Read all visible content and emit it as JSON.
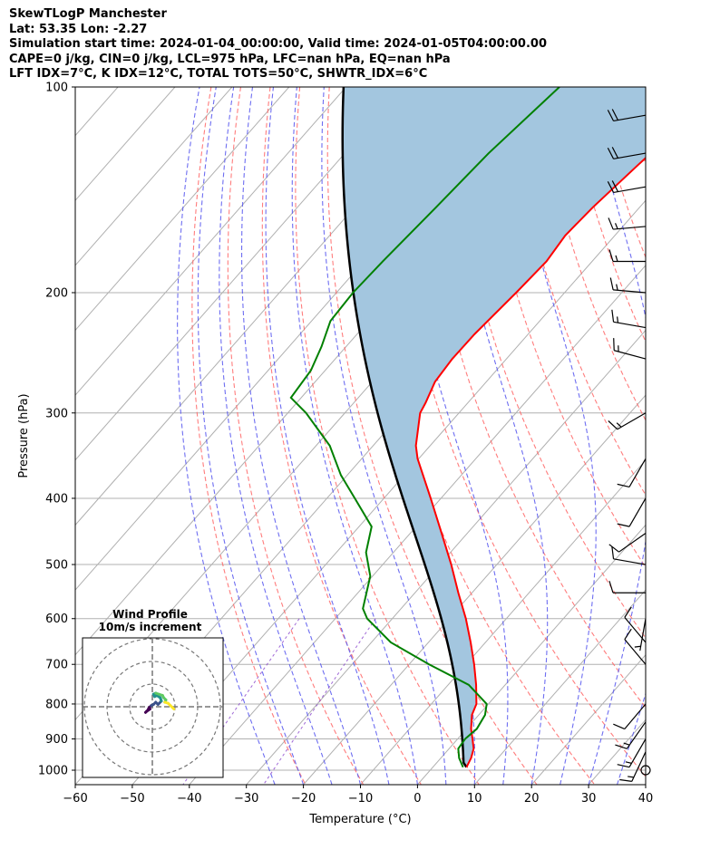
{
  "header": {
    "title": "SkewTLogP Manchester",
    "location": "Lat: 53.35   Lon: -2.27",
    "times": "Simulation start time: 2024-01-04_00:00:00, Valid time: 2024-01-05T04:00:00.00",
    "indices1": "CAPE=0 j/kg, CIN=0 j/kg, LCL=975 hPa, LFC=nan hPa, EQ=nan hPa",
    "indices2": "LFT IDX=7°C, K IDX=12°C, TOTAL TOTS=50°C, SHWTR_IDX=6°C"
  },
  "chart_data": {
    "type": "skewt",
    "xlabel": "Temperature (°C)",
    "ylabel": "Pressure (hPa)",
    "xlim": [
      -60,
      40
    ],
    "ylim": [
      1050,
      100
    ],
    "xticks": [
      -60,
      -50,
      -40,
      -30,
      -20,
      -10,
      0,
      10,
      20,
      30,
      40
    ],
    "yticks": [
      100,
      200,
      300,
      400,
      500,
      600,
      700,
      800,
      900,
      1000
    ],
    "colors": {
      "temperature": "#ff0000",
      "dewpoint": "#008000",
      "parcel": "#000000",
      "shade": "#a3c6df",
      "isotherm": "#b0b0b0",
      "dry_adiabat": "#ff6666",
      "moist_adiabat": "#5555ee",
      "mixing_ratio": "#8844cc"
    },
    "temperature": {
      "p": [
        990,
        960,
        930,
        900,
        870,
        830,
        800,
        750,
        700,
        650,
        600,
        550,
        500,
        450,
        400,
        350,
        335,
        300,
        290,
        270,
        250,
        230,
        200,
        180,
        165,
        150,
        130,
        115,
        100
      ],
      "t": [
        5.9,
        5.3,
        4.3,
        2.6,
        0.8,
        -1.2,
        -2.1,
        -5.1,
        -8.6,
        -12.6,
        -17.1,
        -22.4,
        -28.0,
        -34.5,
        -41.8,
        -50.2,
        -52.5,
        -56.8,
        -57.4,
        -59.0,
        -59.5,
        -59.4,
        -58.5,
        -58.0,
        -58.7,
        -58.2,
        -56.8,
        -55.4,
        -54.0
      ]
    },
    "dewpoint": {
      "p": [
        990,
        960,
        930,
        900,
        870,
        830,
        800,
        750,
        700,
        650,
        600,
        580,
        520,
        480,
        440,
        400,
        370,
        335,
        300,
        285,
        260,
        240,
        220,
        200,
        180,
        150,
        125,
        100
      ],
      "td": [
        5.3,
        3.2,
        1.6,
        1.3,
        1.8,
        1.1,
        -0.3,
        -6.4,
        -16.5,
        -26.6,
        -34.4,
        -36.7,
        -40.4,
        -44.8,
        -47.8,
        -55.1,
        -61.1,
        -67.6,
        -76.8,
        -81.8,
        -82.5,
        -84.3,
        -86.7,
        -87.1,
        -86.7,
        -85.7,
        -84.8,
        -82.6
      ]
    },
    "parcel": {
      "start_t": 5.9,
      "start_p": 990,
      "lcl_p": 975
    },
    "wind_barbs": [
      {
        "p": 1000,
        "speed_kt": 0,
        "dir": 0
      },
      {
        "p": 940,
        "speed_kt": 15,
        "dir": 205
      },
      {
        "p": 900,
        "speed_kt": 15,
        "dir": 210
      },
      {
        "p": 850,
        "speed_kt": 15,
        "dir": 215
      },
      {
        "p": 800,
        "speed_kt": 10,
        "dir": 220
      },
      {
        "p": 700,
        "speed_kt": 10,
        "dir": 320
      },
      {
        "p": 650,
        "speed_kt": 10,
        "dir": 320
      },
      {
        "p": 600,
        "speed_kt": 5,
        "dir": 190
      },
      {
        "p": 550,
        "speed_kt": 10,
        "dir": 270
      },
      {
        "p": 500,
        "speed_kt": 10,
        "dir": 280
      },
      {
        "p": 450,
        "speed_kt": 10,
        "dir": 235
      },
      {
        "p": 400,
        "speed_kt": 10,
        "dir": 210
      },
      {
        "p": 350,
        "speed_kt": 10,
        "dir": 210
      },
      {
        "p": 300,
        "speed_kt": 15,
        "dir": 240
      },
      {
        "p": 250,
        "speed_kt": 15,
        "dir": 285
      },
      {
        "p": 225,
        "speed_kt": 15,
        "dir": 280
      },
      {
        "p": 200,
        "speed_kt": 15,
        "dir": 275
      },
      {
        "p": 180,
        "speed_kt": 15,
        "dir": 270
      },
      {
        "p": 160,
        "speed_kt": 15,
        "dir": 265
      },
      {
        "p": 140,
        "speed_kt": 20,
        "dir": 260
      },
      {
        "p": 125,
        "speed_kt": 20,
        "dir": 260
      },
      {
        "p": 110,
        "speed_kt": 20,
        "dir": 260
      }
    ],
    "hodograph": {
      "title": "Wind Profile",
      "subtitle": "10m/s increment",
      "ring_step_ms": 10,
      "u": [
        -1.0,
        -2.5,
        -3.0,
        -2.0,
        -1.5,
        -0.5,
        0.5,
        1.5,
        2.5,
        3.0,
        4.0,
        3.5,
        2.0,
        1.0,
        0.5,
        1.5,
        3.0,
        4.5,
        5.0,
        6.0,
        5.5,
        7.0,
        8.0,
        9.0,
        9.5
      ],
      "v": [
        -1.0,
        -2.0,
        -2.5,
        -1.5,
        -0.5,
        0.5,
        1.0,
        2.0,
        1.0,
        1.5,
        2.5,
        4.0,
        5.0,
        4.5,
        5.5,
        6.0,
        5.5,
        5.0,
        4.0,
        3.0,
        2.0,
        1.5,
        0.5,
        -0.5,
        -1.0
      ],
      "colormap": [
        "#440154",
        "#3b528b",
        "#21918c",
        "#5ec962",
        "#fde725"
      ]
    }
  }
}
